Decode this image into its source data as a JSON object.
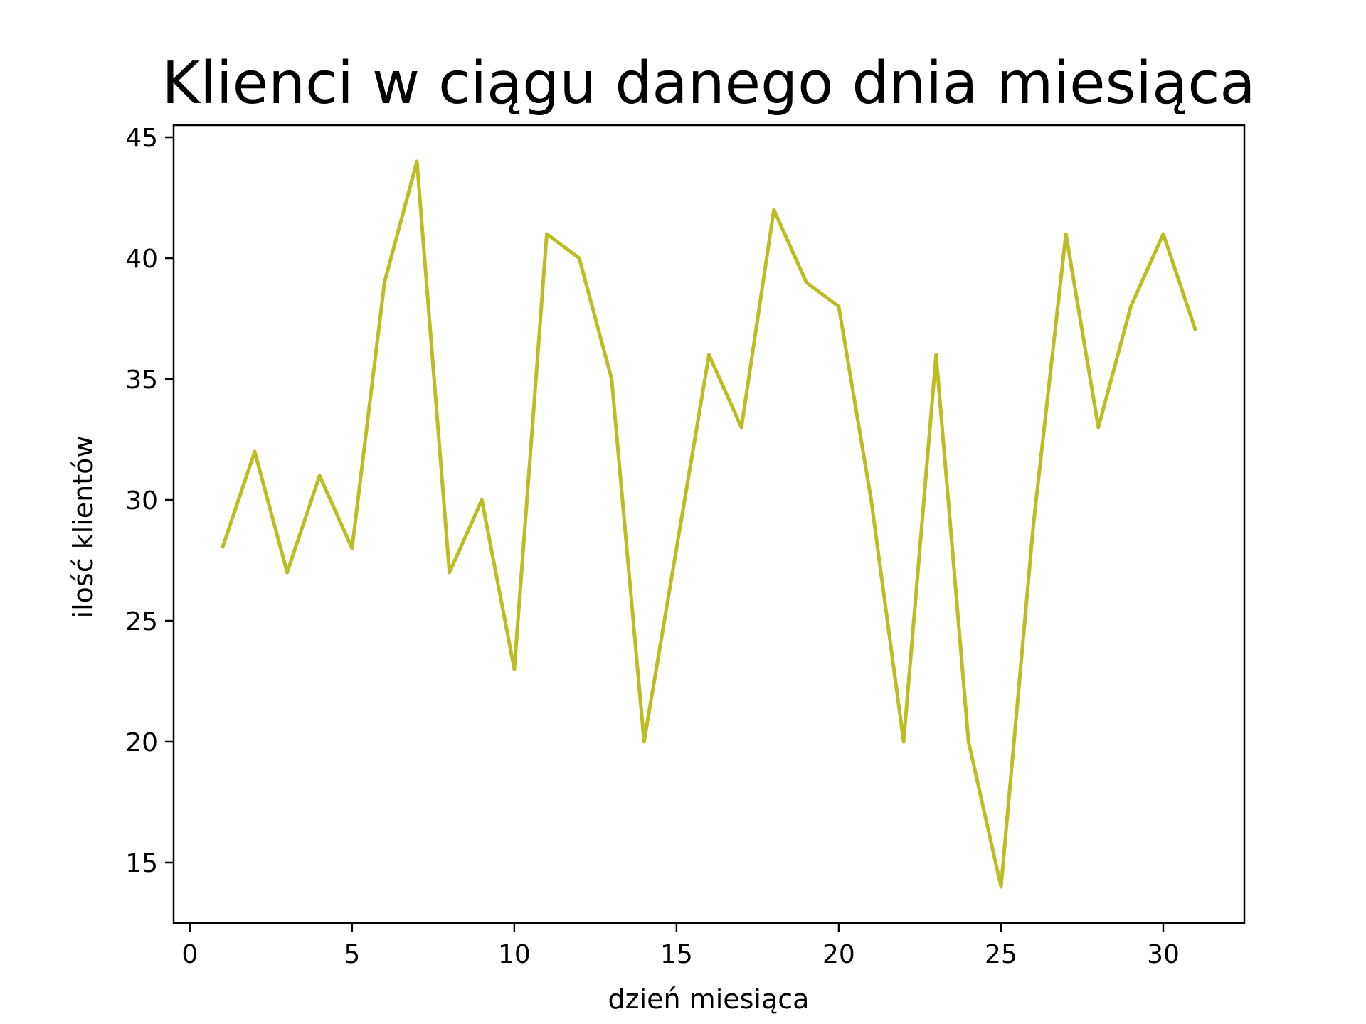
{
  "chart_data": {
    "type": "line",
    "title": "Klienci w ciągu danego dnia miesiąca",
    "xlabel": "dzień miesiąca",
    "ylabel": "ilość klientów",
    "xlim": [
      -0.5,
      32.5
    ],
    "ylim": [
      12.5,
      45.5
    ],
    "xticks": [
      0,
      5,
      10,
      15,
      20,
      25,
      30
    ],
    "xtick_labels": [
      "0",
      "5",
      "10",
      "15",
      "20",
      "25",
      "30"
    ],
    "yticks": [
      15,
      20,
      25,
      30,
      35,
      40,
      45
    ],
    "ytick_labels": [
      "15",
      "20",
      "25",
      "30",
      "35",
      "40",
      "45"
    ],
    "grid": false,
    "series": [
      {
        "color": "#bcbd22",
        "x": [
          1,
          2,
          3,
          4,
          5,
          6,
          7,
          8,
          9,
          10,
          11,
          12,
          13,
          14,
          15,
          16,
          17,
          18,
          19,
          20,
          21,
          22,
          23,
          24,
          25,
          26,
          27,
          28,
          29,
          30,
          31
        ],
        "y": [
          28,
          32,
          27,
          31,
          28,
          39,
          44,
          27,
          30,
          23,
          41,
          40,
          35,
          20,
          28,
          36,
          33,
          42,
          39,
          38,
          30,
          20,
          36,
          20,
          14,
          29,
          41,
          33,
          38,
          41,
          37
        ]
      }
    ]
  }
}
